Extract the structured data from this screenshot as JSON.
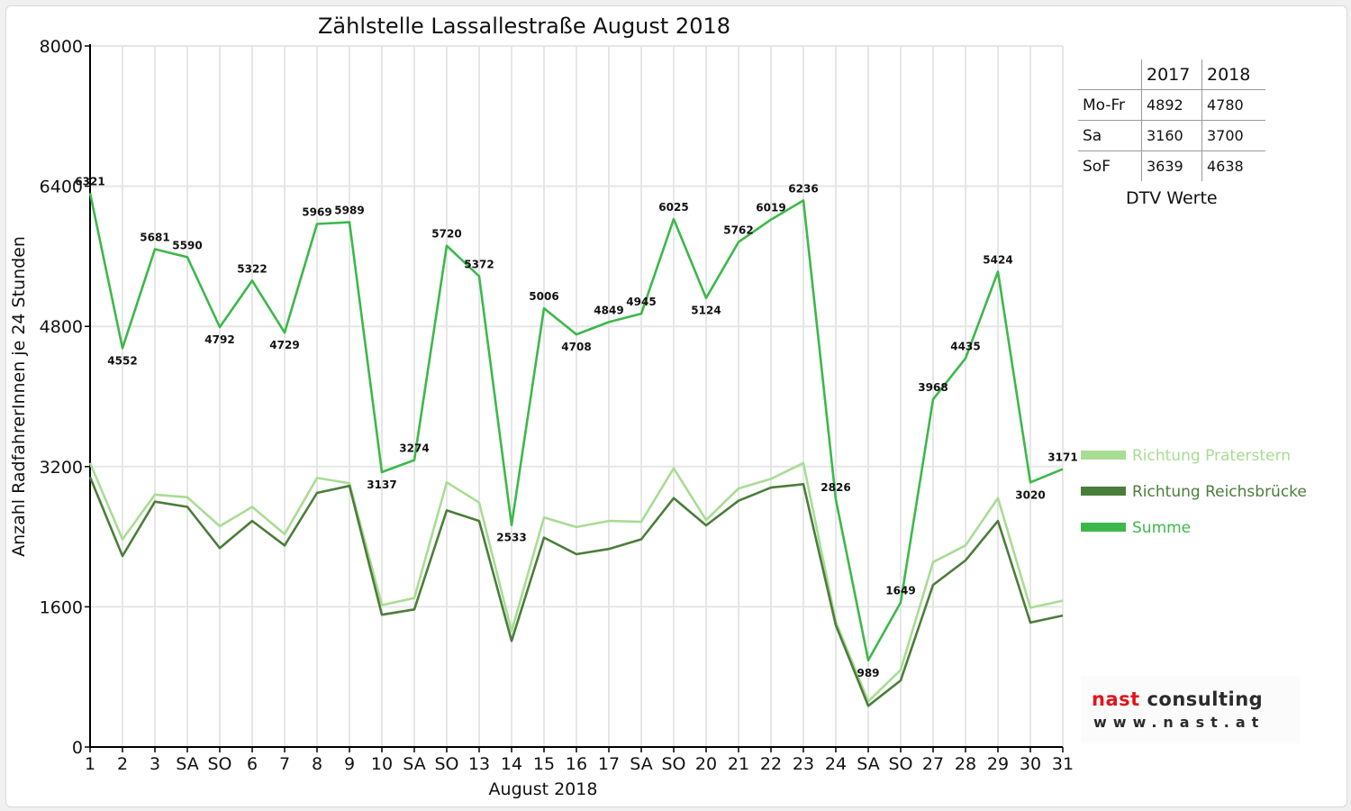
{
  "colors": {
    "praterstern": "#a9dc94",
    "reichsbruecke": "#4b7d3a",
    "summe": "#3cb84a",
    "holiday": "#e10000",
    "grid": "#e6e6e6"
  },
  "dtv_table": {
    "header": [
      "",
      "2017",
      "2018"
    ],
    "rows": [
      {
        "label": "Mo-Fr",
        "y2017": "4892",
        "y2018": "4780"
      },
      {
        "label": "Sa",
        "y2017": "3160",
        "y2018": "3700"
      },
      {
        "label": "SoF",
        "y2017": "3639",
        "y2018": "4638"
      }
    ],
    "caption": "DTV Werte"
  },
  "logo": {
    "name_part1": "nast",
    "name_part2": "consulting",
    "url": "www.nast.at"
  },
  "chart_data": {
    "type": "line",
    "title": "Zählstelle Lassallestraße August 2018",
    "xlabel": "August 2018",
    "ylabel": "Anzahl RadfahrerInnen je 24 Stunden",
    "ylim": [
      0,
      8000
    ],
    "yticks": [
      0,
      1600,
      3200,
      4800,
      6400,
      8000
    ],
    "grid": true,
    "legend_position": "right",
    "categories": [
      "1",
      "2",
      "3",
      "SA",
      "SO",
      "6",
      "7",
      "8",
      "9",
      "10",
      "SA",
      "SO",
      "13",
      "14",
      "15",
      "16",
      "17",
      "SA",
      "SO",
      "20",
      "21",
      "22",
      "23",
      "24",
      "SA",
      "SO",
      "27",
      "28",
      "29",
      "30",
      "31"
    ],
    "holiday_categories": [
      4,
      11,
      14,
      18,
      25
    ],
    "series": [
      {
        "name": "Richtung Praterstern",
        "values": [
          3240,
          2370,
          2880,
          2850,
          2520,
          2740,
          2430,
          3070,
          3010,
          1620,
          1700,
          3020,
          2790,
          1320,
          2620,
          2510,
          2580,
          2570,
          3180,
          2590,
          2950,
          3060,
          3240,
          1430,
          520,
          880,
          2110,
          2300,
          2840,
          1590,
          1670
        ]
      },
      {
        "name": "Richtung Reichsbrücke",
        "values": [
          3080,
          2180,
          2800,
          2740,
          2270,
          2580,
          2300,
          2900,
          2980,
          1510,
          1570,
          2700,
          2580,
          1210,
          2390,
          2200,
          2260,
          2370,
          2840,
          2530,
          2810,
          2960,
          3000,
          1390,
          470,
          760,
          1850,
          2130,
          2580,
          1420,
          1500
        ]
      },
      {
        "name": "Summe",
        "values": [
          6321,
          4552,
          5681,
          5590,
          4792,
          5322,
          4729,
          5969,
          5989,
          3137,
          3274,
          5720,
          5372,
          2533,
          5006,
          4708,
          4849,
          4945,
          6025,
          5124,
          5762,
          6019,
          6236,
          2826,
          989,
          1649,
          3968,
          4435,
          5424,
          3020,
          3171
        ]
      }
    ]
  }
}
